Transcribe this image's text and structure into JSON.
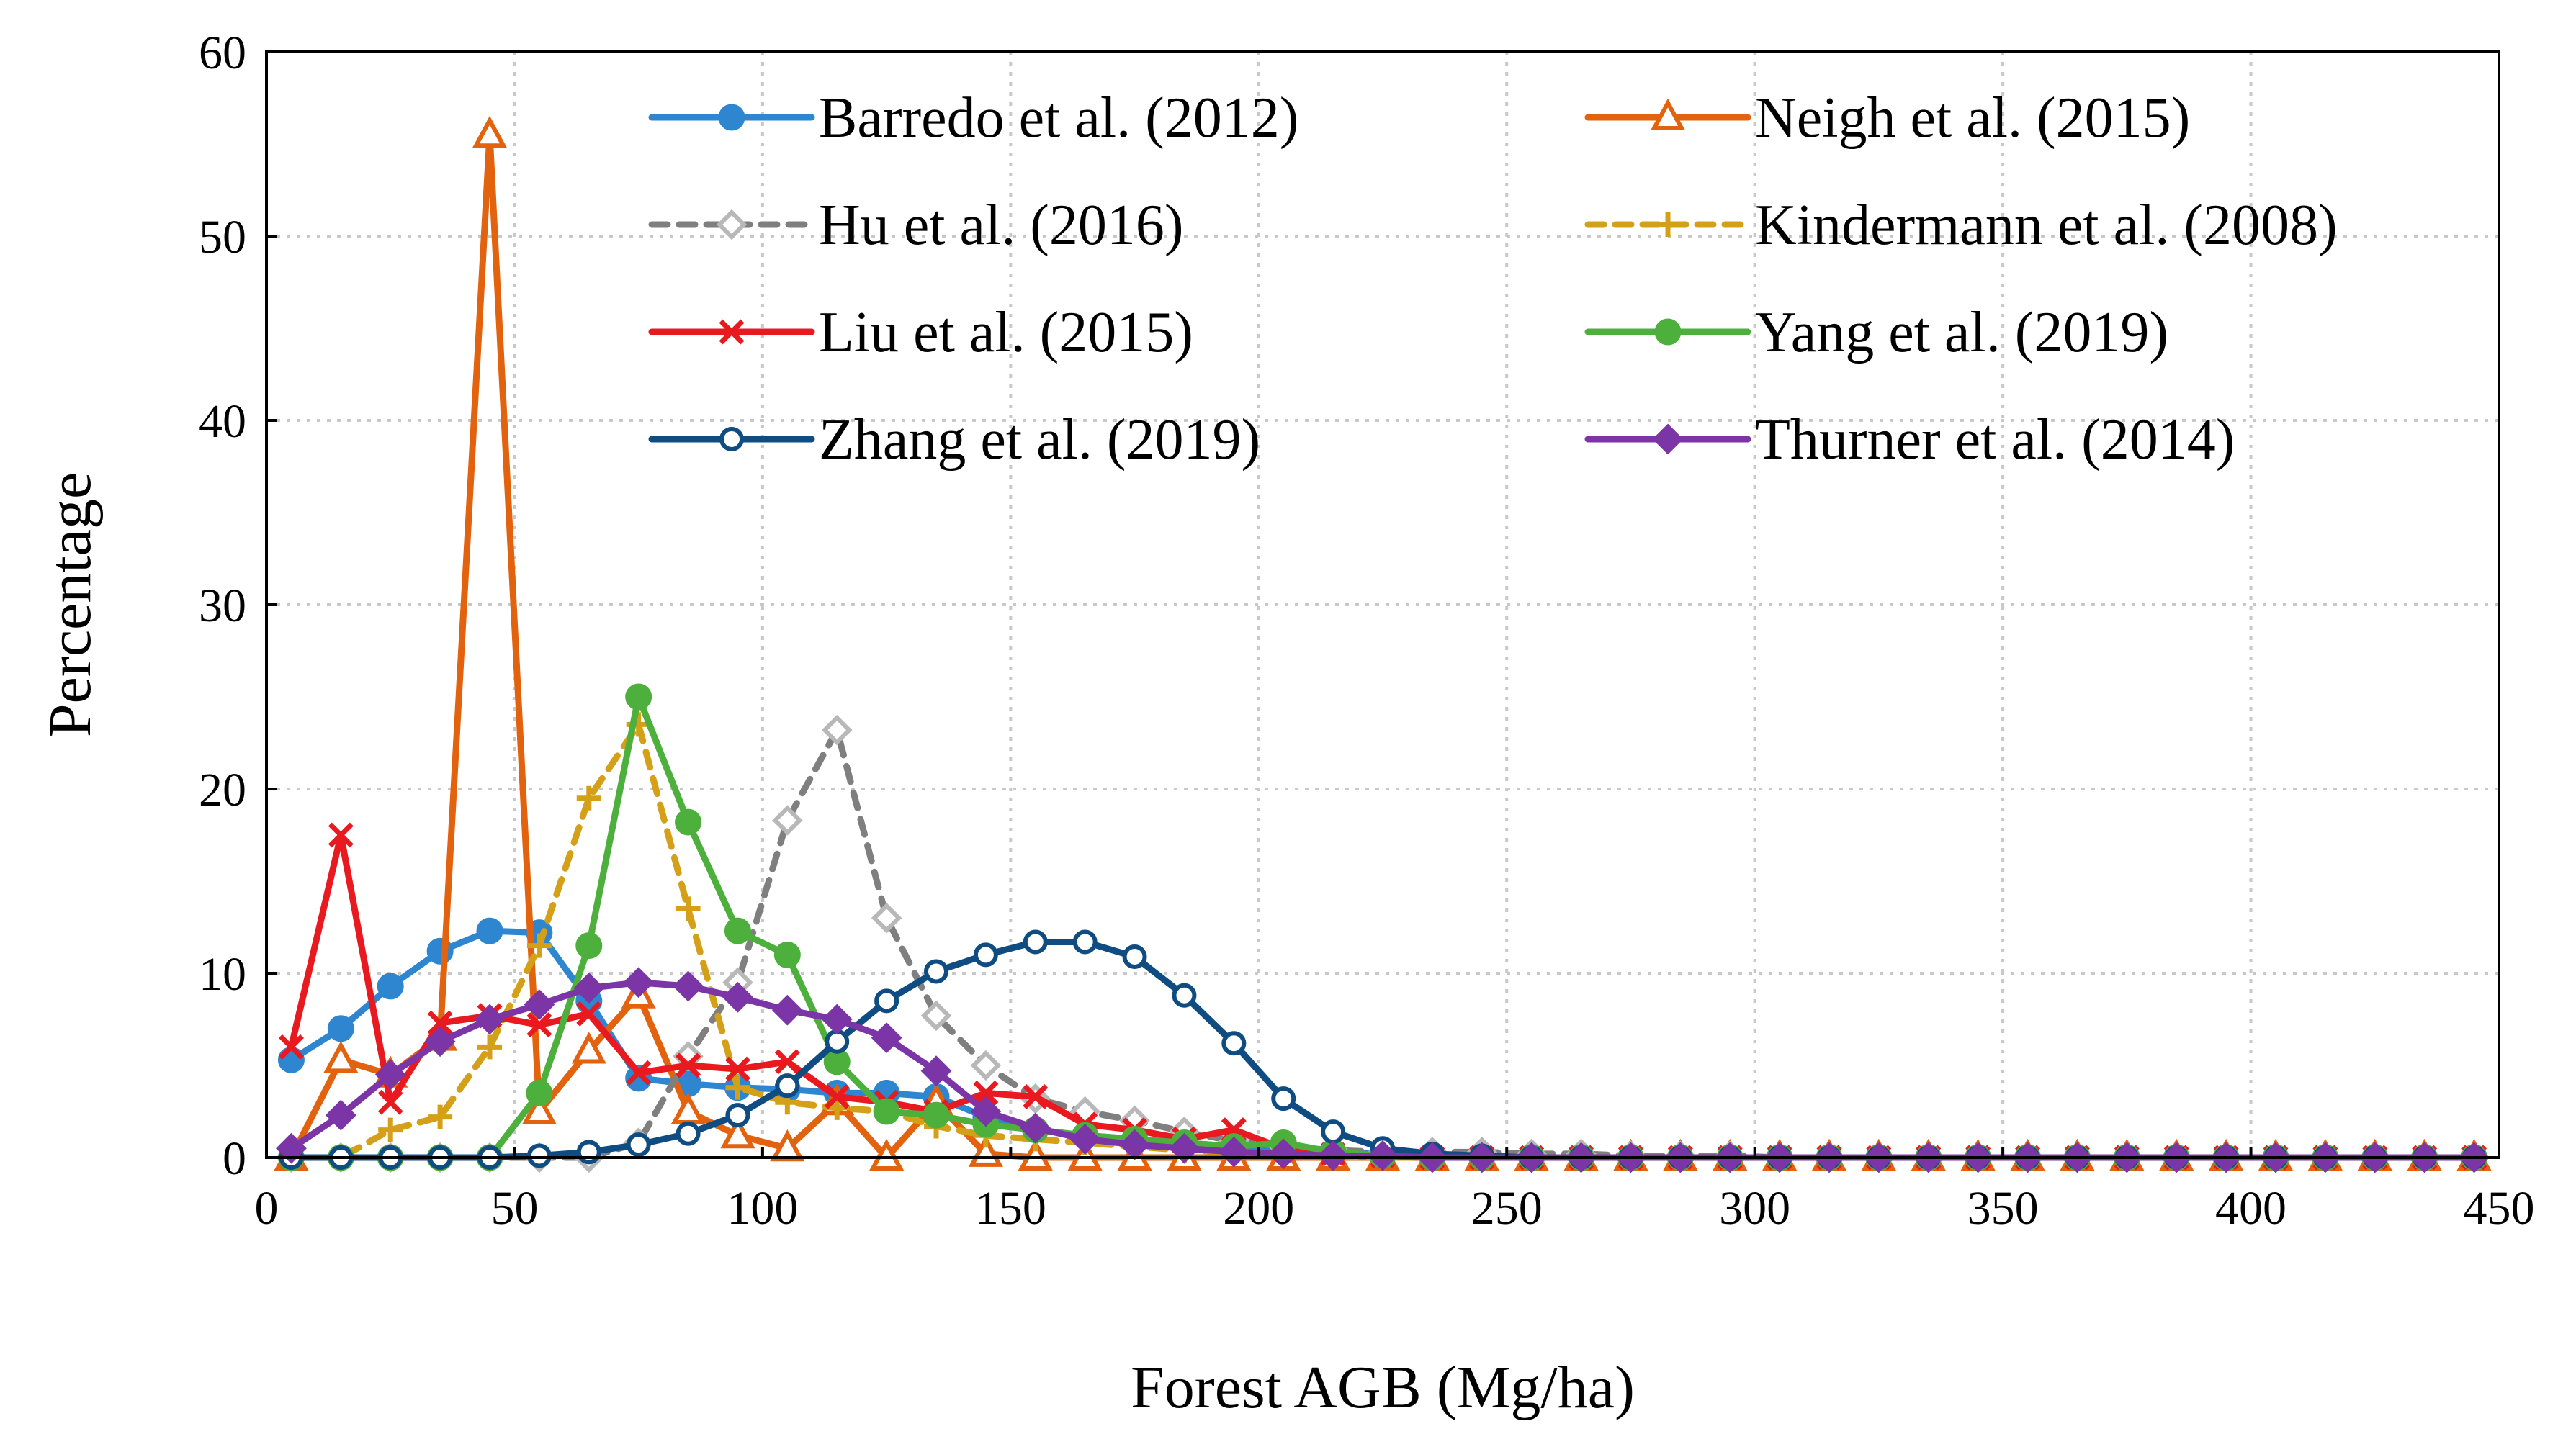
{
  "chart_data": {
    "type": "line",
    "title": "",
    "xlabel": "Forest AGB  (Mg/ha)",
    "ylabel": "Percentage",
    "xlim": [
      0,
      450
    ],
    "ylim": [
      0,
      60
    ],
    "xticks": [
      0,
      50,
      100,
      150,
      200,
      250,
      300,
      350,
      400,
      450
    ],
    "yticks": [
      0,
      10,
      20,
      30,
      40,
      50,
      60
    ],
    "grid": true,
    "legend_position": "top-right",
    "x": [
      5,
      15,
      25,
      35,
      45,
      55,
      65,
      75,
      85,
      95,
      105,
      115,
      125,
      135,
      145,
      155,
      165,
      175,
      185,
      195,
      205,
      215,
      225,
      235,
      245,
      255,
      265,
      275,
      285,
      295,
      305,
      315,
      325,
      335,
      345,
      355,
      365,
      375,
      385,
      395,
      405,
      415,
      425,
      435,
      445
    ],
    "series": [
      {
        "name": "Barredo et al. (2012)",
        "color": "#2E86D1",
        "dash": false,
        "marker": "circle",
        "values": [
          5.3,
          7.0,
          9.3,
          11.2,
          12.3,
          12.2,
          8.5,
          4.3,
          4.0,
          3.8,
          3.7,
          3.5,
          3.5,
          3.3,
          2.2,
          1.5,
          1.2,
          1.0,
          0.8,
          0.6,
          0.4,
          0.3,
          0.2,
          0.1,
          0.1,
          0,
          0,
          0,
          0,
          0,
          0,
          0,
          0,
          0,
          0,
          0,
          0,
          0,
          0,
          0,
          0,
          0,
          0,
          0,
          0
        ]
      },
      {
        "name": "Neigh et al. (2015)",
        "color": "#E2620E",
        "dash": false,
        "marker": "triangle",
        "values": [
          0,
          5.3,
          4.5,
          6.5,
          55.5,
          2.5,
          5.8,
          8.8,
          2.5,
          1.2,
          0.5,
          3.0,
          0,
          3.0,
          0.2,
          0,
          0,
          0,
          0,
          0,
          0,
          0,
          0,
          0,
          0,
          0,
          0,
          0,
          0,
          0,
          0,
          0,
          0,
          0,
          0,
          0,
          0,
          0,
          0,
          0,
          0,
          0,
          0,
          0,
          0
        ]
      },
      {
        "name": "Hu et al. (2016)",
        "color": "#7F7F7F",
        "dash": true,
        "marker": "diamond-open",
        "values": [
          0,
          0,
          0,
          0,
          0,
          0,
          0,
          0.8,
          5.5,
          9.5,
          18.3,
          23.2,
          13.0,
          7.7,
          5.0,
          3.2,
          2.5,
          2.0,
          1.4,
          0.9,
          0.6,
          0.4,
          0.3,
          0.3,
          0.3,
          0.2,
          0.2,
          0.1,
          0.1,
          0.1,
          0,
          0,
          0,
          0,
          0,
          0,
          0,
          0,
          0,
          0,
          0,
          0,
          0,
          0,
          0
        ]
      },
      {
        "name": "Kindermann et al. (2008)",
        "color": "#D4A017",
        "dash": true,
        "marker": "plus",
        "values": [
          0,
          0,
          1.5,
          2.2,
          6.0,
          11.5,
          19.5,
          23.5,
          13.5,
          3.8,
          3.0,
          2.7,
          2.5,
          1.7,
          1.2,
          1.0,
          0.8,
          0.6,
          0.4,
          0.3,
          0.2,
          0.1,
          0,
          0,
          0,
          0,
          0,
          0,
          0,
          0,
          0,
          0,
          0,
          0,
          0,
          0,
          0,
          0,
          0,
          0,
          0,
          0,
          0,
          0,
          0
        ]
      },
      {
        "name": "Liu et al. (2015)",
        "color": "#E8191F",
        "dash": false,
        "marker": "cross",
        "values": [
          6.0,
          17.5,
          3.0,
          7.3,
          7.7,
          7.2,
          7.8,
          4.6,
          5.0,
          4.8,
          5.2,
          3.3,
          3.0,
          2.5,
          3.5,
          3.3,
          1.8,
          1.5,
          1.0,
          1.5,
          0.5,
          0.2,
          0.1,
          0,
          0,
          0,
          0,
          0,
          0,
          0,
          0,
          0,
          0,
          0,
          0,
          0,
          0,
          0,
          0,
          0,
          0,
          0,
          0,
          0,
          0
        ]
      },
      {
        "name": "Yang et al. (2019)",
        "color": "#4DAF3C",
        "dash": false,
        "marker": "circle",
        "values": [
          0,
          0,
          0,
          0,
          0,
          3.5,
          11.5,
          25.0,
          18.2,
          12.3,
          11.0,
          5.2,
          2.5,
          2.3,
          1.8,
          1.5,
          1.2,
          1.0,
          0.8,
          0.6,
          0.8,
          0.3,
          0.1,
          0,
          0,
          0,
          0,
          0,
          0,
          0,
          0,
          0,
          0,
          0,
          0,
          0,
          0,
          0,
          0,
          0,
          0,
          0,
          0,
          0,
          0
        ]
      },
      {
        "name": "Zhang et al. (2019)",
        "color": "#0F4C81",
        "dash": false,
        "marker": "circle-open",
        "values": [
          0,
          0,
          0,
          0,
          0,
          0.1,
          0.3,
          0.7,
          1.3,
          2.3,
          3.9,
          6.3,
          8.5,
          10.1,
          11.0,
          11.7,
          11.7,
          10.9,
          8.8,
          6.2,
          3.2,
          1.4,
          0.5,
          0.2,
          0.1,
          0,
          0,
          0,
          0,
          0,
          0,
          0,
          0,
          0,
          0,
          0,
          0,
          0,
          0,
          0,
          0,
          0,
          0,
          0,
          0
        ]
      },
      {
        "name": "Thurner et al. (2014)",
        "color": "#7B35A6",
        "dash": false,
        "marker": "diamond",
        "values": [
          0.5,
          2.3,
          4.5,
          6.3,
          7.5,
          8.3,
          9.2,
          9.5,
          9.3,
          8.7,
          8.0,
          7.5,
          6.5,
          4.7,
          2.5,
          1.6,
          1.0,
          0.7,
          0.5,
          0.3,
          0.2,
          0.1,
          0.1,
          0,
          0,
          0,
          0,
          0,
          0,
          0,
          0,
          0,
          0,
          0,
          0,
          0,
          0,
          0,
          0,
          0,
          0,
          0,
          0,
          0,
          0
        ]
      }
    ]
  }
}
